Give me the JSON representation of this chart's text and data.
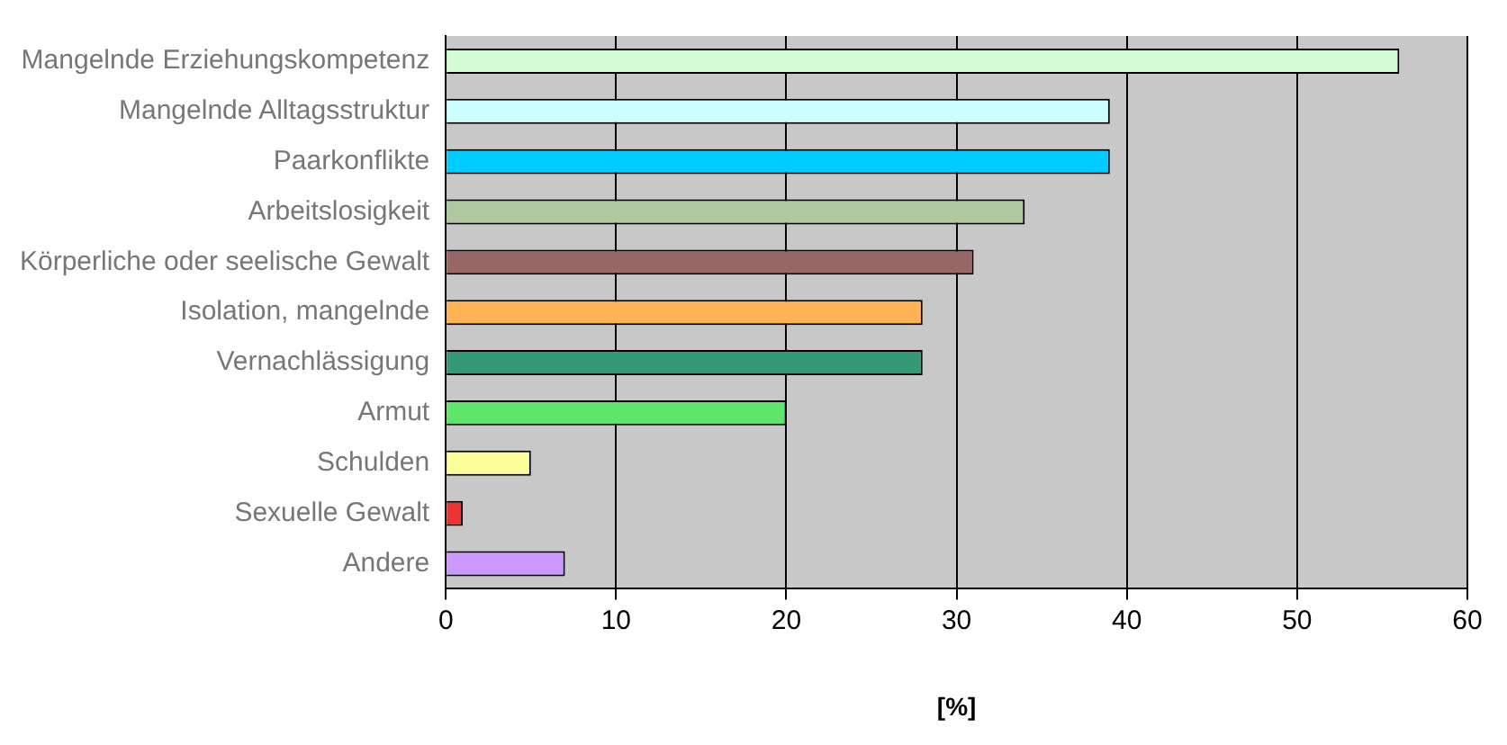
{
  "chart_data": {
    "type": "bar",
    "orientation": "horizontal",
    "xlabel": "[%]",
    "categories": [
      "Mangelnde Erziehungskompetenz",
      "Mangelnde Alltagsstruktur",
      "Paarkonflikte",
      "Arbeitslosigkeit",
      "Körperliche oder seelische Gewalt",
      "Isolation, mangelnde",
      "Vernachlässigung",
      "Armut",
      "Schulden",
      "Sexuelle Gewalt",
      "Andere"
    ],
    "values": [
      56,
      39,
      39,
      34,
      31,
      28,
      28,
      20,
      5,
      1,
      7
    ],
    "colors": [
      "#d4fcd4",
      "#ccffff",
      "#00ccff",
      "#b0c8a0",
      "#996666",
      "#ffb355",
      "#339977",
      "#5ee66a",
      "#ffff99",
      "#ee3333",
      "#cc99ff"
    ],
    "xlim": [
      0,
      60
    ],
    "xticks": [
      0,
      10,
      20,
      30,
      40,
      50,
      60
    ],
    "grid": "x",
    "legend": false
  }
}
